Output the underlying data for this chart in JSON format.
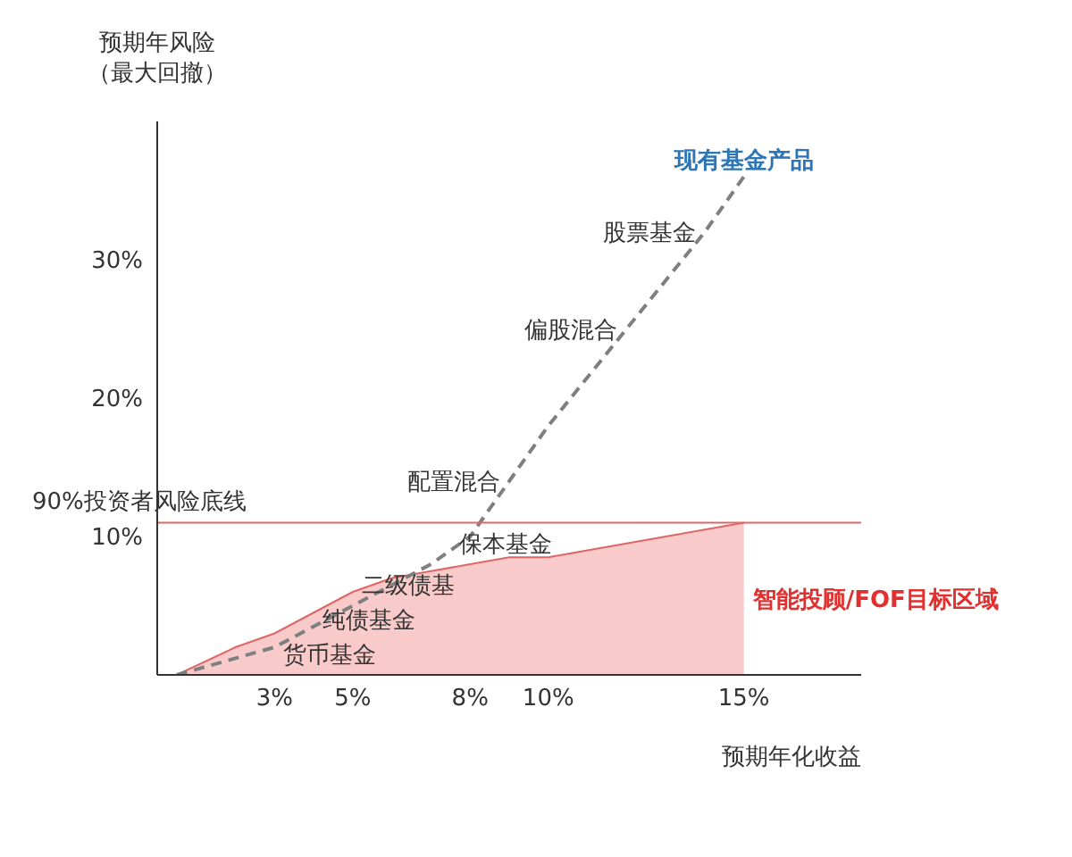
{
  "chart_data": {
    "type": "line",
    "ylabel": "预期年风险（最大回撤）",
    "xlabel": "预期年化收益",
    "xlim": [
      0,
      18
    ],
    "xticks": [
      {
        "value": 3,
        "label": "3%"
      },
      {
        "value": 5,
        "label": "5%"
      },
      {
        "value": 8,
        "label": "8%"
      },
      {
        "value": 10,
        "label": "10%"
      },
      {
        "value": 15,
        "label": "15%"
      }
    ],
    "ylim": [
      0,
      40
    ],
    "yticks": [
      {
        "value": 10,
        "label": "10%"
      },
      {
        "value": 20,
        "label": "20%"
      },
      {
        "value": 30,
        "label": "30%"
      }
    ],
    "series": [
      {
        "name": "智能投顾/FOF目标区域",
        "type": "area",
        "color": "#f4a6a6",
        "x": [
          0.5,
          2,
          3,
          4,
          5,
          6,
          7,
          8,
          9,
          10,
          11,
          12,
          13,
          14,
          15
        ],
        "values": [
          0,
          2,
          3,
          4.5,
          6,
          7,
          7.5,
          8,
          8.5,
          8.5,
          9,
          9.5,
          10,
          10.5,
          11
        ]
      },
      {
        "name": "现有基金产品",
        "color": "#7f7f7f",
        "line_style": "dashed",
        "x": [
          0.5,
          3,
          5,
          7,
          8,
          9,
          10,
          12,
          14,
          15
        ],
        "values": [
          0,
          2,
          5,
          8,
          10,
          14,
          18,
          25,
          32,
          36
        ]
      }
    ],
    "ref_lines": [
      {
        "axis": "y",
        "value": 11,
        "label": "90%投资者风险底线",
        "color": "#e06666"
      }
    ],
    "annotations": [
      {
        "text": "货币基金",
        "x": 3,
        "y": 1.5
      },
      {
        "text": "纯债基金",
        "x": 4,
        "y": 4
      },
      {
        "text": "二级债基",
        "x": 5,
        "y": 6.5
      },
      {
        "text": "保本基金",
        "x": 7.5,
        "y": 9.5
      },
      {
        "text": "配置混合",
        "x": 9,
        "y": 14
      },
      {
        "text": "偏股混合",
        "x": 12,
        "y": 25
      },
      {
        "text": "股票基金",
        "x": 14,
        "y": 32
      }
    ],
    "grid": false,
    "legend": false
  }
}
